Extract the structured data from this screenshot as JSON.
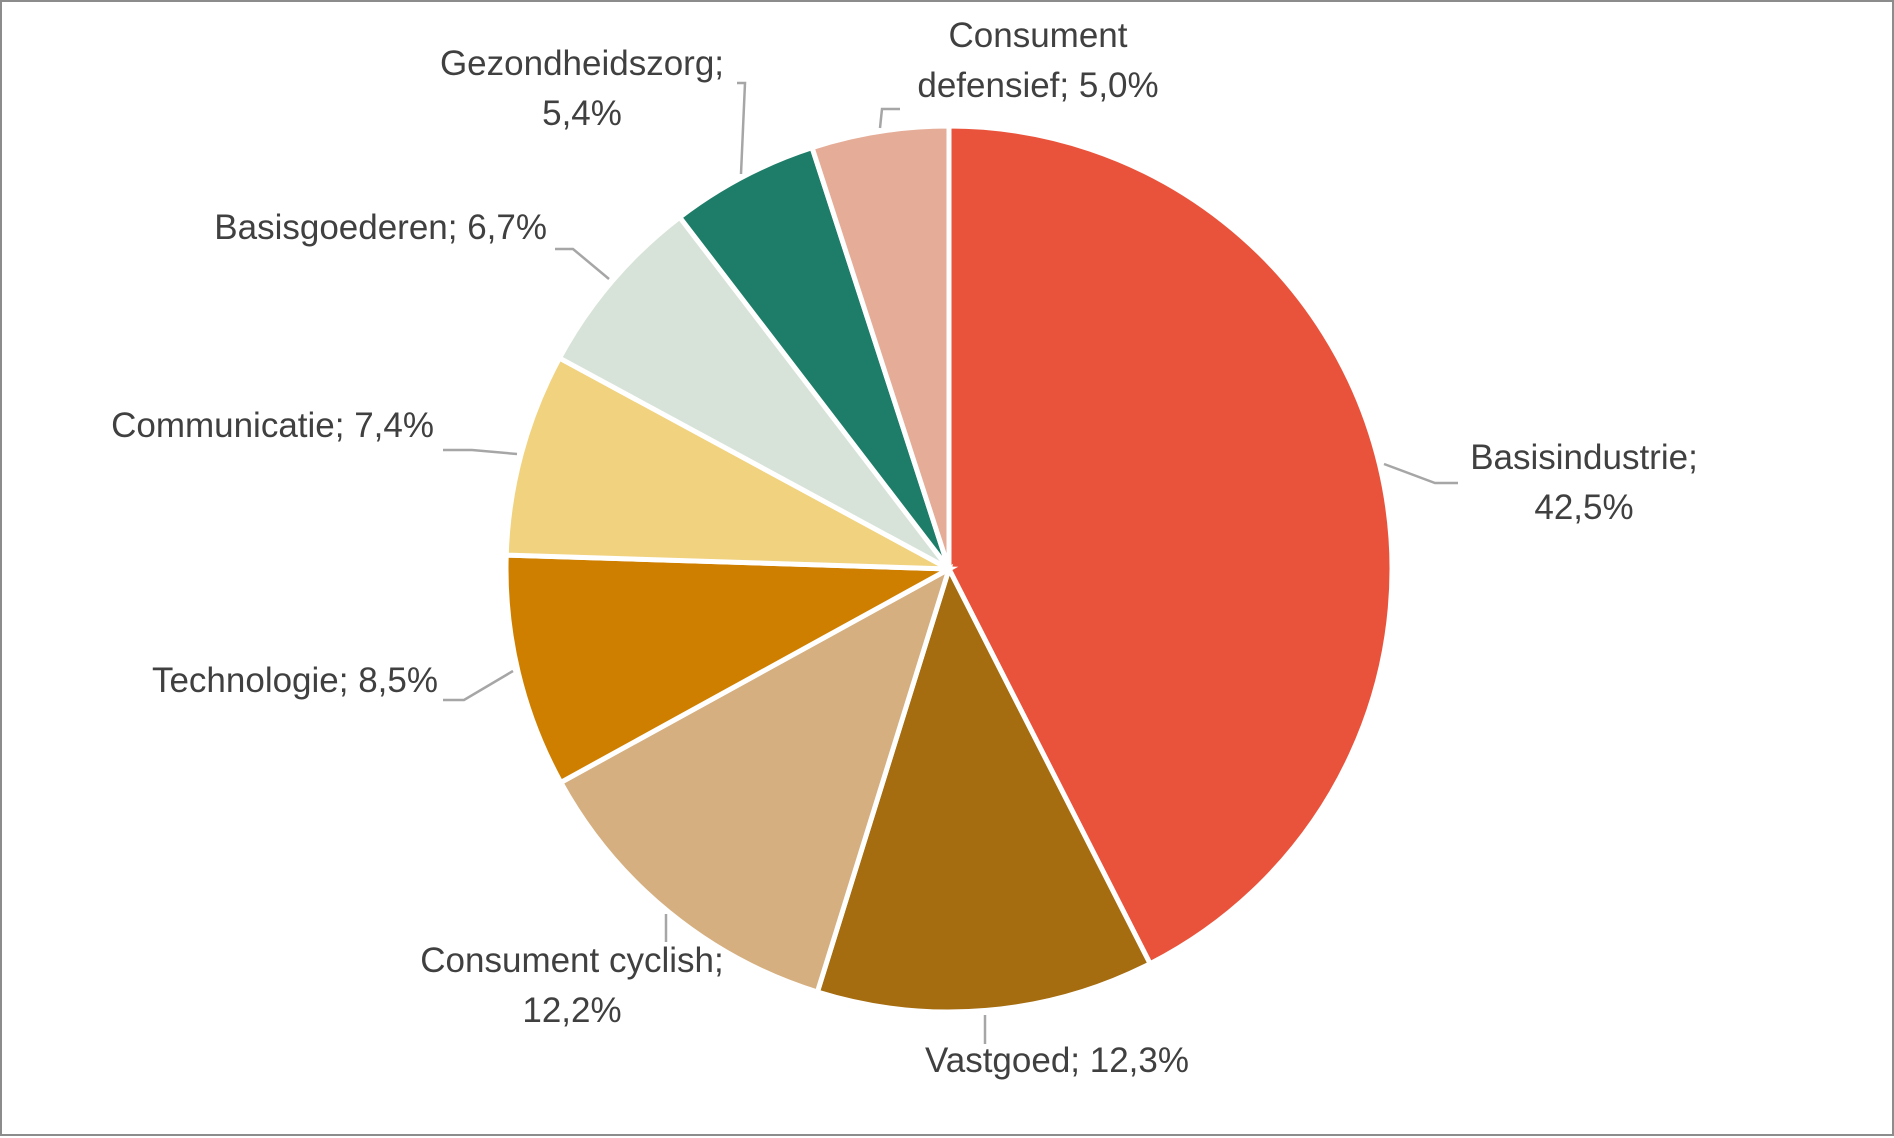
{
  "chart_data": {
    "type": "pie",
    "title": "",
    "start_angle_deg": 0,
    "direction": "clockwise",
    "slices": [
      {
        "name": "Basisindustrie",
        "value": 42.5,
        "label_lines": [
          "Basisindustrie;",
          "42,5%"
        ],
        "color": "#EA533B"
      },
      {
        "name": "Vastgoed",
        "value": 12.3,
        "label_lines": [
          "Vastgoed; 12,3%"
        ],
        "color": "#A56C10"
      },
      {
        "name": "Consument cyclish",
        "value": 12.2,
        "label_lines": [
          "Consument cyclish;",
          "12,2%"
        ],
        "color": "#D5AF7F"
      },
      {
        "name": "Technologie",
        "value": 8.5,
        "label_lines": [
          "Technologie; 8,5%"
        ],
        "color": "#CF7F00"
      },
      {
        "name": "Communicatie",
        "value": 7.4,
        "label_lines": [
          "Communicatie; 7,4%"
        ],
        "color": "#F0D27F"
      },
      {
        "name": "Basisgoederen",
        "value": 6.7,
        "label_lines": [
          "Basisgoederen; 6,7%"
        ],
        "color": "#D7E3D8"
      },
      {
        "name": "Gezondheidszorg",
        "value": 5.4,
        "label_lines": [
          "Gezondheidszorg;",
          "5,4%"
        ],
        "color": "#1E7D68"
      },
      {
        "name": "Consument defensief",
        "value": 5.0,
        "label_lines": [
          "Consument",
          "defensief; 5,0%"
        ],
        "color": "#E5AC97"
      }
    ]
  }
}
